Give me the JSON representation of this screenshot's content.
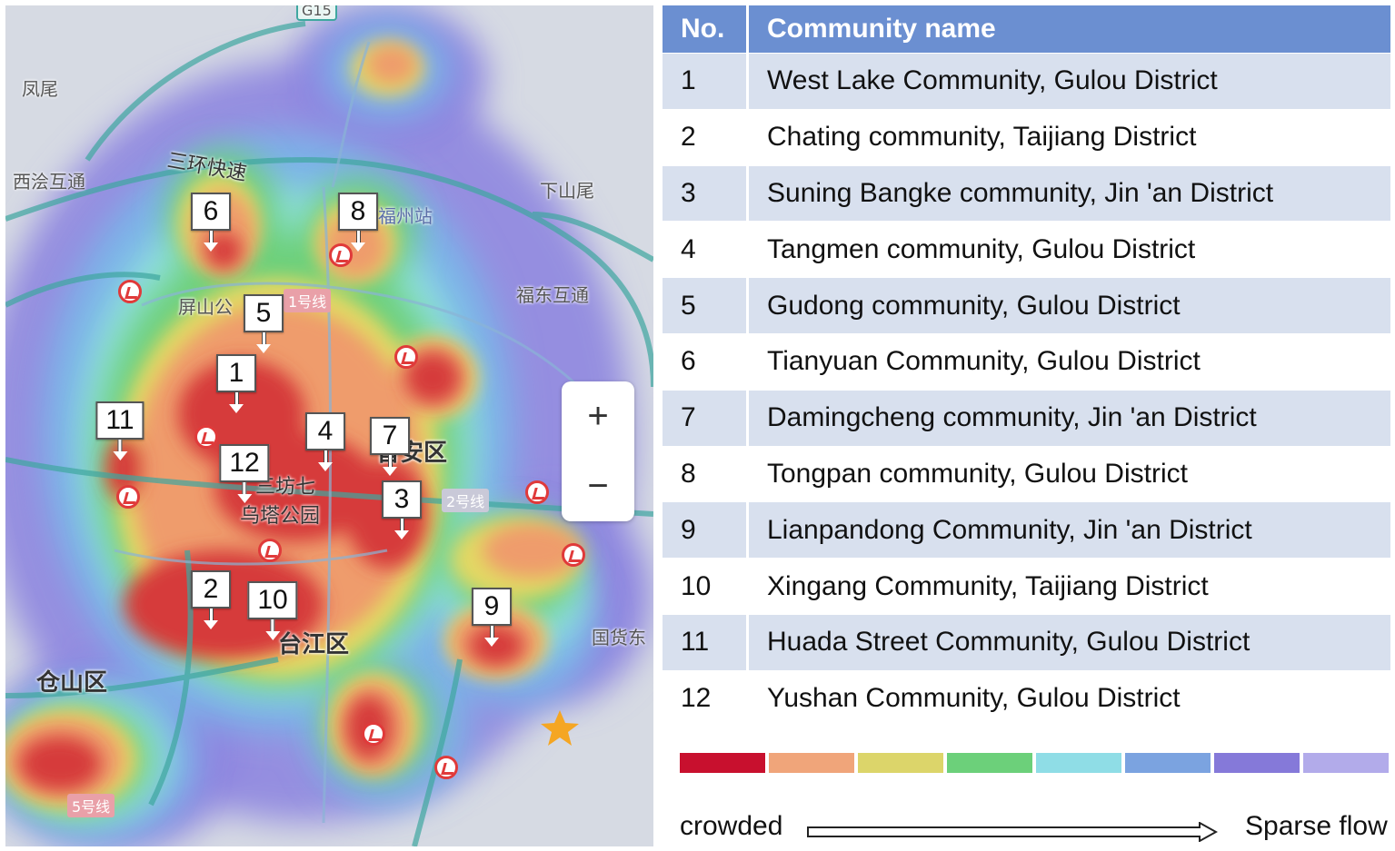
{
  "map": {
    "places": [
      {
        "id": "fengwei",
        "text": "凤尾"
      },
      {
        "id": "xiqin",
        "text": "西浍互通"
      },
      {
        "id": "ring3",
        "text": "三环快速"
      },
      {
        "id": "xiashanwei",
        "text": "下山尾"
      },
      {
        "id": "fuzhouzhan",
        "text": "福州站"
      },
      {
        "id": "pingshan",
        "text": "屏山公"
      },
      {
        "id": "fudong",
        "text": "福东互通"
      },
      {
        "id": "jinan",
        "text": "晋安区"
      },
      {
        "id": "taijiang",
        "text": "台江区"
      },
      {
        "id": "cangshan",
        "text": "仓山区"
      },
      {
        "id": "sanfang",
        "text": "三坊七"
      },
      {
        "id": "yushan",
        "text": "乌塔公园"
      },
      {
        "id": "guoxiu",
        "text": "国货东"
      },
      {
        "id": "g315",
        "text": "G15"
      }
    ],
    "line_tags": [
      {
        "id": "line1",
        "text": "1号线"
      },
      {
        "id": "line2",
        "text": "2号线"
      },
      {
        "id": "line5",
        "text": "5号线"
      }
    ],
    "markers": [
      "1",
      "2",
      "3",
      "4",
      "5",
      "6",
      "7",
      "8",
      "9",
      "10",
      "11",
      "12"
    ],
    "zoom": {
      "plus": "+",
      "minus": "−"
    }
  },
  "table": {
    "headers": {
      "no": "No.",
      "name": "Community name"
    },
    "rows": [
      {
        "no": "1",
        "name": "West Lake Community, Gulou District"
      },
      {
        "no": "2",
        "name": "Chating community, Taijiang District"
      },
      {
        "no": "3",
        "name": "Suning Bangke community, Jin 'an District"
      },
      {
        "no": "4",
        "name": "Tangmen community, Gulou District"
      },
      {
        "no": "5",
        "name": "Gudong community, Gulou District"
      },
      {
        "no": "6",
        "name": "Tianyuan Community, Gulou District"
      },
      {
        "no": "7",
        "name": "Damingcheng community, Jin 'an District"
      },
      {
        "no": "8",
        "name": "Tongpan community, Gulou District"
      },
      {
        "no": "9",
        "name": "Lianpandong Community, Jin 'an District"
      },
      {
        "no": "10",
        "name": "Xingang Community, Taijiang District"
      },
      {
        "no": "11",
        "name": "Huada Street Community, Gulou District"
      },
      {
        "no": "12",
        "name": "Yushan Community, Gulou District"
      }
    ]
  },
  "scale": {
    "colors": [
      "#c8102e",
      "#f0a57a",
      "#dcd56a",
      "#6cd07a",
      "#8fdde6",
      "#7ba3e0",
      "#8579d9",
      "#b2abea"
    ],
    "left_label": "crowded",
    "right_label": "Sparse flow"
  }
}
